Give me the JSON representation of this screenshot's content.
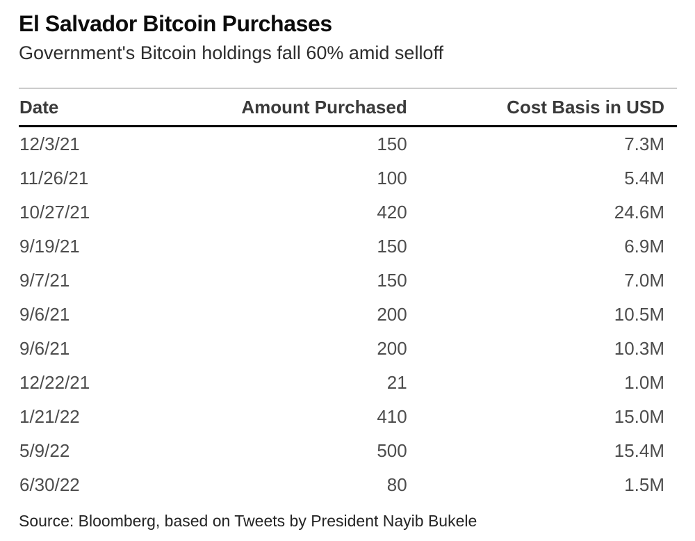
{
  "title": "El Salvador Bitcoin Purchases",
  "subtitle": "Government's Bitcoin holdings fall 60% amid selloff",
  "source": "Source: Bloomberg, based on Tweets by President Nayib Bukele",
  "colors": {
    "background": "#ffffff",
    "title_text": "#0b0b0b",
    "subtitle_text": "#2d2d2d",
    "header_text": "#3a3a3a",
    "cell_text": "#4d4d4d",
    "header_rule_thick": "#000000",
    "header_rule_thin": "#cccccc"
  },
  "table": {
    "columns": [
      "Date",
      "Amount Purchased",
      "Cost Basis in USD"
    ],
    "rows": [
      [
        "12/3/21",
        "150",
        "7.3M"
      ],
      [
        "11/26/21",
        "100",
        "5.4M"
      ],
      [
        "10/27/21",
        "420",
        "24.6M"
      ],
      [
        "9/19/21",
        "150",
        "6.9M"
      ],
      [
        "9/7/21",
        "150",
        "7.0M"
      ],
      [
        "9/6/21",
        "200",
        "10.5M"
      ],
      [
        "9/6/21",
        "200",
        "10.3M"
      ],
      [
        "12/22/21",
        "21",
        "1.0M"
      ],
      [
        "1/21/22",
        "410",
        "15.0M"
      ],
      [
        "5/9/22",
        "500",
        "15.4M"
      ],
      [
        "6/30/22",
        "80",
        "1.5M"
      ]
    ]
  },
  "chart_data": {
    "type": "table",
    "title": "El Salvador Bitcoin Purchases",
    "subtitle": "Government's Bitcoin holdings fall 60% amid selloff",
    "source": "Source: Bloomberg, based on Tweets by President Nayib Bukele",
    "columns": [
      "Date",
      "Amount Purchased",
      "Cost Basis in USD"
    ],
    "rows": [
      {
        "date": "12/3/21",
        "amount_purchased": 150,
        "cost_basis_usd": "7.3M"
      },
      {
        "date": "11/26/21",
        "amount_purchased": 100,
        "cost_basis_usd": "5.4M"
      },
      {
        "date": "10/27/21",
        "amount_purchased": 420,
        "cost_basis_usd": "24.6M"
      },
      {
        "date": "9/19/21",
        "amount_purchased": 150,
        "cost_basis_usd": "6.9M"
      },
      {
        "date": "9/7/21",
        "amount_purchased": 150,
        "cost_basis_usd": "7.0M"
      },
      {
        "date": "9/6/21",
        "amount_purchased": 200,
        "cost_basis_usd": "10.5M"
      },
      {
        "date": "9/6/21",
        "amount_purchased": 200,
        "cost_basis_usd": "10.3M"
      },
      {
        "date": "12/22/21",
        "amount_purchased": 21,
        "cost_basis_usd": "1.0M"
      },
      {
        "date": "1/21/22",
        "amount_purchased": 410,
        "cost_basis_usd": "15.0M"
      },
      {
        "date": "5/9/22",
        "amount_purchased": 500,
        "cost_basis_usd": "15.4M"
      },
      {
        "date": "6/30/22",
        "amount_purchased": 80,
        "cost_basis_usd": "1.5M"
      }
    ]
  }
}
